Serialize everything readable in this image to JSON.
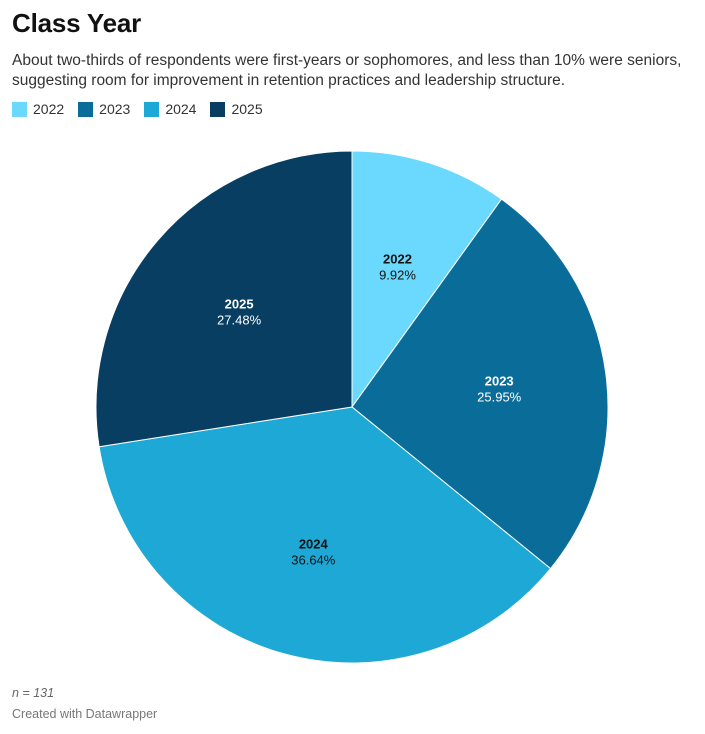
{
  "header": {
    "title": "Class Year",
    "subtitle": "About two-thirds of respondents were first-years or sophomores, and less than 10% were seniors, suggesting room for improvement in retention practices and leadership structure."
  },
  "footer": {
    "note": "n = 131",
    "credit": "Created with Datawrapper"
  },
  "chart_data": {
    "type": "pie",
    "title": "Class Year",
    "legend_placement": "top-left",
    "categories": [
      "2022",
      "2023",
      "2024",
      "2025"
    ],
    "values": [
      9.92,
      25.95,
      36.64,
      27.48
    ],
    "value_labels": [
      "9.92%",
      "25.95%",
      "36.64%",
      "27.48%"
    ],
    "colors": [
      "#6bd8fd",
      "#0a6d99",
      "#1ea8d6",
      "#083e61"
    ],
    "label_colors": [
      "#111111",
      "#ffffff",
      "#111111",
      "#ffffff"
    ],
    "start_angle_deg": 0,
    "direction": "clockwise"
  }
}
